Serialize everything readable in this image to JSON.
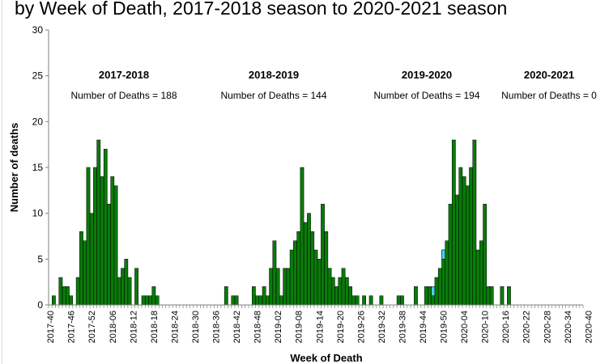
{
  "chart_data": {
    "type": "bar",
    "title": "by Week of Death, 2017-2018 season to 2020-2021 season",
    "xlabel": "Week of Death",
    "ylabel": "Number of deaths",
    "ylim": [
      0,
      30
    ],
    "yticks": [
      0,
      5,
      10,
      15,
      20,
      25,
      30
    ],
    "grid": false,
    "colors": {
      "dark": "#0a7a0a",
      "light": "#4fd0e0"
    },
    "seasons": [
      {
        "name": "2017-2018",
        "deaths_label": "Number of Deaths = 188"
      },
      {
        "name": "2018-2019",
        "deaths_label": "Number of Deaths = 144"
      },
      {
        "name": "2019-2020",
        "deaths_label": "Number of Deaths = 194"
      },
      {
        "name": "2020-2021",
        "deaths_label": "Number of Deaths = 0"
      }
    ],
    "x_tick_labels": [
      "2017-40",
      "2017-46",
      "2017-52",
      "2018-06",
      "2018-12",
      "2018-18",
      "2018-24",
      "2018-30",
      "2018-36",
      "2018-42",
      "2018-48",
      "2019-02",
      "2019-08",
      "2019-14",
      "2019-20",
      "2019-26",
      "2019-32",
      "2019-38",
      "2019-44",
      "2019-50",
      "2020-04",
      "2020-10",
      "2020-16",
      "2020-22",
      "2020-28",
      "2020-34",
      "2020-40"
    ],
    "values": [
      0,
      1,
      0,
      3,
      2,
      2,
      1,
      0,
      3,
      8,
      7,
      15,
      10,
      15,
      18,
      14,
      17,
      11,
      14,
      13,
      3,
      4,
      5,
      3,
      0,
      4,
      0,
      1,
      1,
      1,
      2,
      1,
      0,
      0,
      0,
      0,
      0,
      0,
      0,
      0,
      0,
      0,
      0,
      0,
      0,
      0,
      0,
      0,
      0,
      0,
      0,
      2,
      0,
      1,
      1,
      0,
      0,
      0,
      0,
      2,
      1,
      1,
      2,
      1,
      4,
      7,
      4,
      1,
      4,
      4,
      6,
      7,
      8,
      15,
      9,
      10,
      8,
      6,
      5,
      11,
      8,
      4,
      3,
      2,
      3,
      4,
      3,
      2,
      1,
      1,
      0,
      1,
      0,
      1,
      0,
      0,
      1,
      0,
      0,
      0,
      0,
      1,
      1,
      0,
      0,
      0,
      2,
      0,
      0,
      2,
      2,
      2,
      3,
      4,
      6,
      7,
      11,
      18,
      12,
      15,
      14,
      13,
      15,
      18,
      6,
      7,
      11,
      2,
      2,
      0,
      0,
      2,
      0,
      2,
      0,
      0,
      0,
      0,
      0,
      0,
      0,
      0,
      0,
      0,
      0,
      0,
      0,
      0,
      0,
      0,
      0,
      0,
      0,
      0,
      0
    ],
    "secondary_values": {
      "111": 1,
      "114": 1
    }
  }
}
